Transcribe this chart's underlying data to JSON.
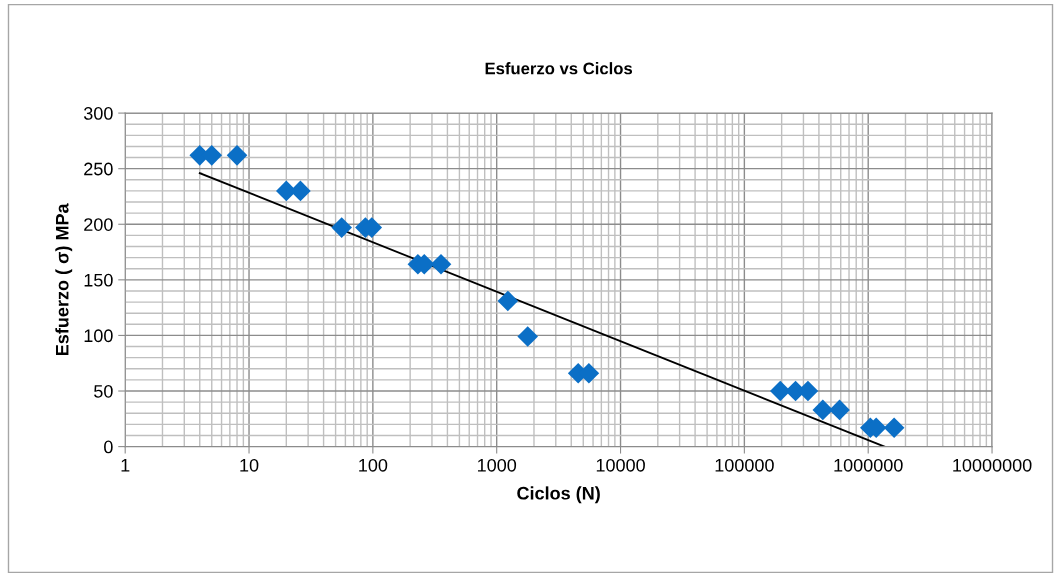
{
  "chart_data": {
    "type": "scatter",
    "title": "Esfuerzo vs Ciclos",
    "xlabel": "Ciclos (N)",
    "ylabel": "Esfuerzo ( σ) MPa",
    "log": "x",
    "xlim": [
      1,
      10000000
    ],
    "xticks": [
      1,
      10,
      100,
      1000,
      10000,
      100000,
      1000000,
      10000000
    ],
    "ylim": [
      0,
      300
    ],
    "yticks": [
      0,
      50,
      100,
      150,
      200,
      250,
      300
    ],
    "grid": true,
    "legend": false,
    "marker": "diamond",
    "series": [
      {
        "color": "#0b6fc6",
        "x": [
          4,
          5,
          8,
          20,
          26,
          56,
          87,
          98,
          231,
          260,
          355,
          1230,
          1780,
          4550,
          5550,
          195000,
          259000,
          326000,
          430000,
          587000,
          1040000,
          1160000,
          1620000
        ],
        "values": [
          262,
          262,
          262,
          230,
          230,
          197,
          197,
          197,
          164,
          164,
          164,
          131,
          99,
          66,
          66,
          50,
          50,
          50,
          33,
          33,
          17,
          17,
          17
        ]
      },
      {
        "type": "line",
        "color": "#000000",
        "marker": "none",
        "line_style": "solid",
        "x": [
          4,
          1350000
        ],
        "values": [
          246,
          0
        ]
      }
    ]
  }
}
